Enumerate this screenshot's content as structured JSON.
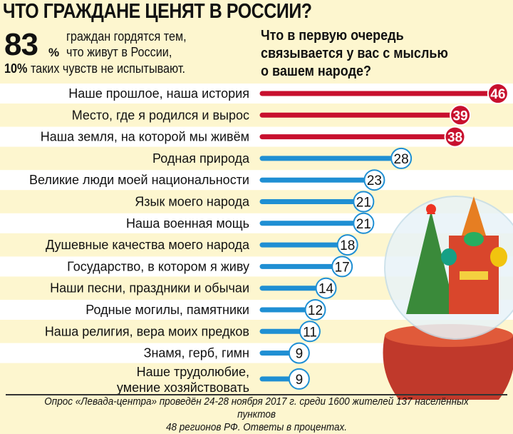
{
  "header": {
    "title": "ЧТО ГРАЖДАНЕ ЦЕНЯТ В РОССИИ?",
    "stat_value": "83",
    "stat_unit": "%",
    "stat_line1": "граждан гордятся тем,",
    "stat_line2": "что живут в России,",
    "stat2_value": "10%",
    "stat2_text": "таких чувств не испытывают.",
    "question_line1": "Что в первую очередь",
    "question_line2": "связывается у вас с мыслью",
    "question_line3": "о вашем народе?"
  },
  "chart_data": {
    "type": "bar",
    "orientation": "horizontal",
    "title": "Что в первую очередь связывается у вас с мыслью о вашем народе?",
    "unit": "%",
    "categories": [
      "Наше прошлое, наша история",
      "Место, где я родился и вырос",
      "Наша земля, на которой мы живём",
      "Родная природа",
      "Великие люди моей национальности",
      "Язык моего народа",
      "Наша военная мощь",
      "Душевные качества моего народа",
      "Государство, в котором я живу",
      "Наши песни, праздники и обычаи",
      "Родные могилы, памятники",
      "Наша религия, вера моих предков",
      "Знамя, герб, гимн",
      "Наше трудолюбие, умение хозяйствовать"
    ],
    "values": [
      46,
      39,
      38,
      28,
      23,
      21,
      21,
      18,
      17,
      14,
      12,
      11,
      9,
      9
    ],
    "highlight_top": 3,
    "colors": {
      "highlight": "#c8102e",
      "normal": "#1f8fd3"
    }
  },
  "footer": {
    "line1": "Опрос «Левада-центра» проведён 24-28 ноября 2017 г. среди 1600 жителей 137 населённых пунктов",
    "line2": "48 регионов РФ. Ответы в процентах."
  }
}
